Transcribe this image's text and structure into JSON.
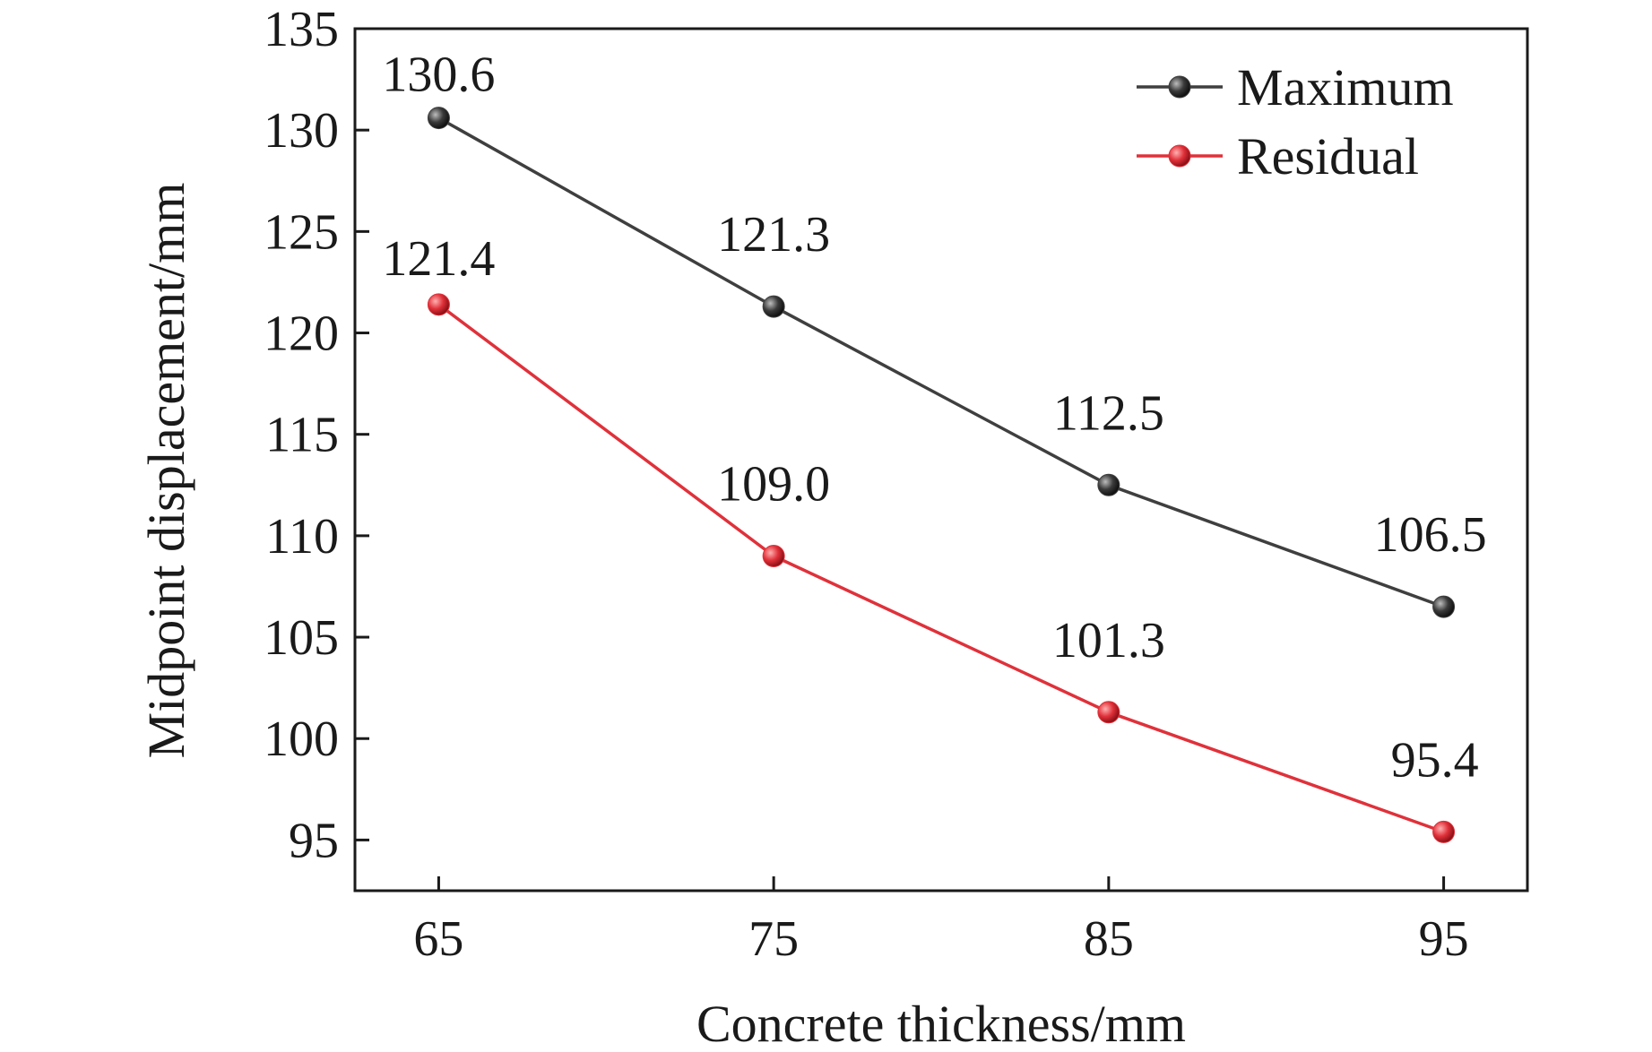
{
  "chart_data": {
    "type": "line",
    "x": [
      65,
      75,
      85,
      95
    ],
    "xlabel": "Concrete thickness/mm",
    "ylabel": "Midpoint displacement/mm",
    "xlim": [
      62.5,
      97.5
    ],
    "ylim": [
      92.5,
      135
    ],
    "xticks": [
      65,
      75,
      85,
      95
    ],
    "yticks": [
      95,
      100,
      105,
      110,
      115,
      120,
      125,
      130,
      135
    ],
    "grid": false,
    "legend_position": "top-right",
    "series": [
      {
        "name": "Maximum",
        "values": [
          130.6,
          121.3,
          112.5,
          106.5
        ],
        "labels": [
          "130.6",
          "121.3",
          "112.5",
          "106.5"
        ],
        "color": "#3f3f3f"
      },
      {
        "name": "Residual",
        "values": [
          121.4,
          109.0,
          101.3,
          95.4
        ],
        "labels": [
          "121.4",
          "109.0",
          "101.3",
          "95.4"
        ],
        "color": "#e0313a"
      }
    ]
  }
}
